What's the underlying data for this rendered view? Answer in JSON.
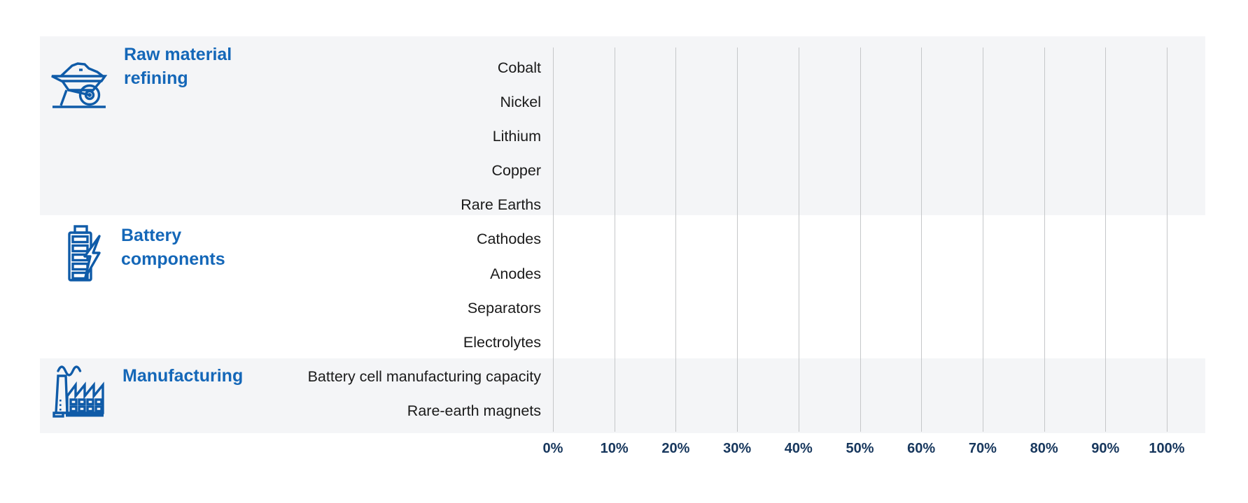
{
  "colors": {
    "band_background": "#f4f5f7",
    "gridline": "#c5c7c9",
    "icon_blue": "#0f5ba8",
    "group_label_blue": "#1467b8",
    "axis_label_navy": "#17375d",
    "row_label_black": "#1a1a1a"
  },
  "chart_data": {
    "type": "bar",
    "orientation": "horizontal",
    "title": "",
    "values_shown": false,
    "series": [],
    "groups": [
      {
        "label": "Raw material refining",
        "label_lines": [
          "Raw material",
          "refining"
        ],
        "icon": "wheelbarrow-icon",
        "rows": [
          "Cobalt",
          "Nickel",
          "Lithium",
          "Copper",
          "Rare Earths"
        ]
      },
      {
        "label": "Battery components",
        "label_lines": [
          "Battery",
          "components"
        ],
        "icon": "battery-icon",
        "rows": [
          "Cathodes",
          "Anodes",
          "Separators",
          "Electrolytes"
        ]
      },
      {
        "label": "Manufacturing",
        "label_lines": [
          "Manufacturing"
        ],
        "icon": "factory-icon",
        "rows": [
          "Battery cell manufacturing capacity",
          "Rare-earth magnets"
        ]
      }
    ],
    "x_axis": {
      "min": 0,
      "max": 100,
      "unit": "%",
      "grid": true,
      "tick_labels": [
        "0%",
        "10%",
        "20%",
        "30%",
        "40%",
        "50%",
        "60%",
        "70%",
        "80%",
        "90%",
        "100%"
      ]
    }
  }
}
